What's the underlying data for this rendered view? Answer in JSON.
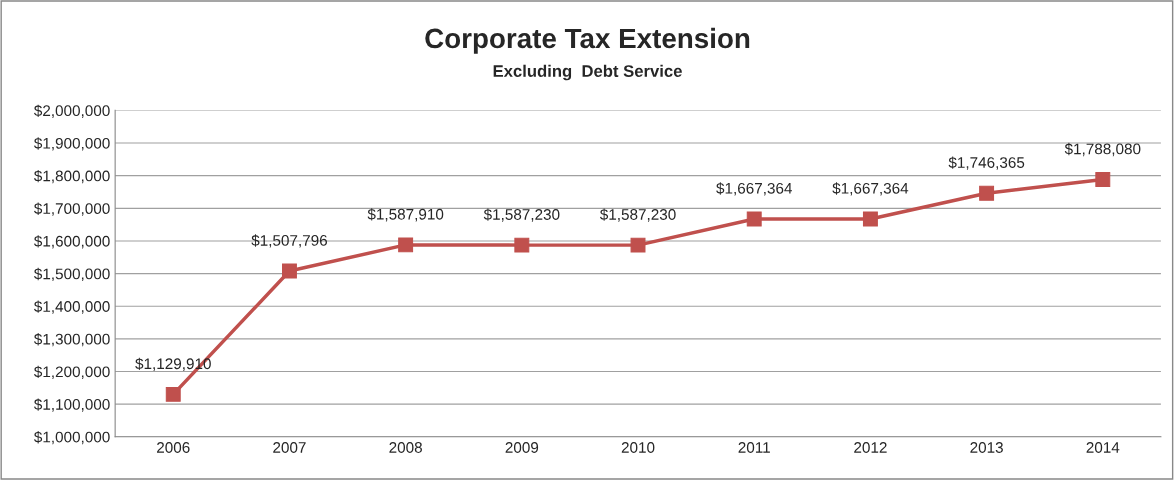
{
  "chart_data": {
    "type": "line",
    "title": "Corporate Tax Extension",
    "subtitle": "Excluding  Debt Service",
    "categories": [
      "2006",
      "2007",
      "2008",
      "2009",
      "2010",
      "2011",
      "2012",
      "2013",
      "2014"
    ],
    "series": [
      {
        "color": "#c0504d",
        "values": [
          1129910,
          1507796,
          1587910,
          1587230,
          1587230,
          1667364,
          1667364,
          1746365,
          1788080
        ],
        "value_labels": [
          "$1,129,910",
          "$1,507,796",
          "$1,587,910",
          "$1,587,230",
          "$1,587,230",
          "$1,667,364",
          "$1,667,364",
          "$1,746,365",
          "$1,788,080"
        ]
      }
    ],
    "ylim": [
      1000000,
      2000000
    ],
    "yticks": [
      {
        "value": 1000000,
        "label": "$1,000,000"
      },
      {
        "value": 1100000,
        "label": "$1,100,000"
      },
      {
        "value": 1200000,
        "label": "$1,200,000"
      },
      {
        "value": 1300000,
        "label": "$1,300,000"
      },
      {
        "value": 1400000,
        "label": "$1,400,000"
      },
      {
        "value": 1500000,
        "label": "$1,500,000"
      },
      {
        "value": 1600000,
        "label": "$1,600,000"
      },
      {
        "value": 1700000,
        "label": "$1,700,000"
      },
      {
        "value": 1800000,
        "label": "$1,800,000"
      },
      {
        "value": 1900000,
        "label": "$1,900,000"
      },
      {
        "value": 2000000,
        "label": "$2,000,000"
      }
    ],
    "grid": "y",
    "marker": "square",
    "line_style": "solid",
    "legend": false
  }
}
